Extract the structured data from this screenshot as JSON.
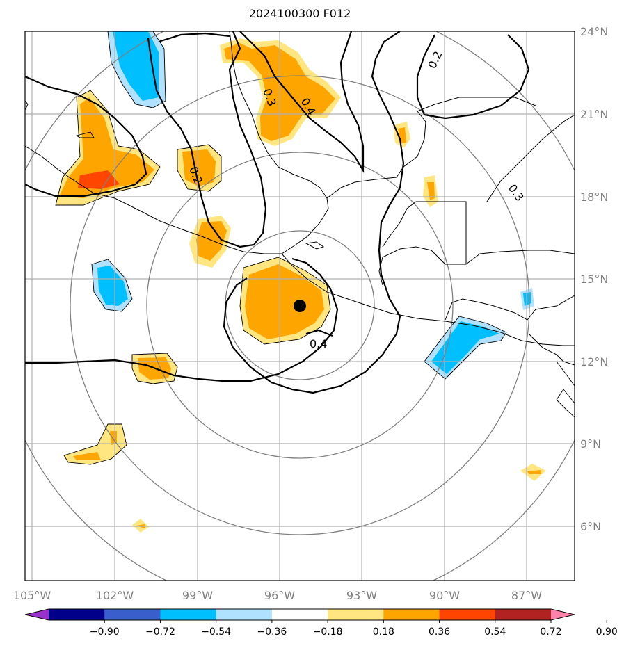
{
  "title": "2024100300 F012",
  "lon_labels": [
    "105°W",
    "102°W",
    "99°W",
    "96°W",
    "93°W",
    "90°W",
    "87°W"
  ],
  "lat_labels": [
    "24°N",
    "21°N",
    "18°N",
    "15°N",
    "12°N",
    "9°N",
    "6°N"
  ],
  "colorbar": {
    "tick_labels": [
      "−0.90",
      "−0.72",
      "−0.54",
      "−0.36",
      "−0.18",
      "0.18",
      "0.36",
      "0.54",
      "0.72",
      "0.90"
    ],
    "colors": [
      "#9932cc",
      "#00008b",
      "#3a5fcd",
      "#00bfff",
      "#b0e2ff",
      "#ffffff",
      "#ffe680",
      "#ffa500",
      "#ff4500",
      "#b22222",
      "#ff82ab"
    ]
  },
  "contour_labels": [
    "0.2",
    "0.3",
    "0.4",
    "0.2",
    "0.4",
    "0.3"
  ],
  "storm_center": "96°W, 14°N"
}
